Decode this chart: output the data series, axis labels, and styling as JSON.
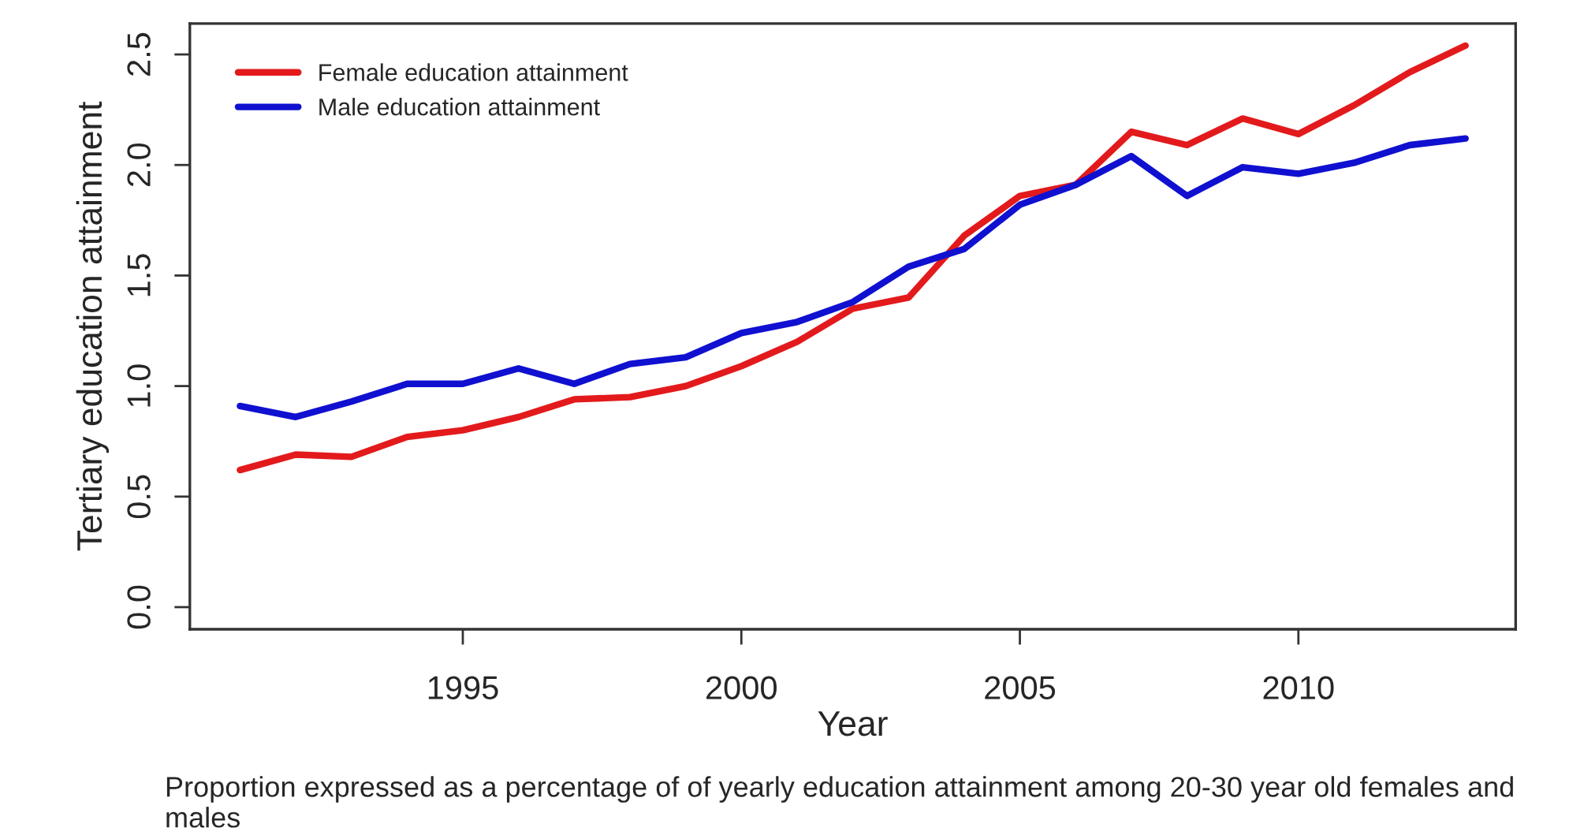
{
  "chart_data": {
    "type": "line",
    "xlabel": "Year",
    "ylabel": "Tertiary education attainment",
    "x": [
      1991,
      1992,
      1993,
      1994,
      1995,
      1996,
      1997,
      1998,
      1999,
      2000,
      2001,
      2002,
      2003,
      2004,
      2005,
      2006,
      2007,
      2008,
      2009,
      2010,
      2011,
      2012,
      2013
    ],
    "series": [
      {
        "name": "Female education attainment",
        "color": "#e31a1c",
        "values": [
          0.62,
          0.69,
          0.68,
          0.77,
          0.8,
          0.86,
          0.94,
          0.95,
          1.0,
          1.09,
          1.2,
          1.35,
          1.4,
          1.68,
          1.86,
          1.91,
          2.15,
          2.09,
          2.21,
          2.14,
          2.27,
          2.42,
          2.54
        ]
      },
      {
        "name": "Male education attainment",
        "color": "#1010d0",
        "values": [
          0.91,
          0.86,
          0.93,
          1.01,
          1.01,
          1.08,
          1.01,
          1.1,
          1.13,
          1.24,
          1.29,
          1.38,
          1.54,
          1.62,
          1.82,
          1.91,
          2.04,
          1.86,
          1.99,
          1.96,
          2.01,
          2.09,
          2.12
        ]
      }
    ],
    "xlim": [
      1990.1,
      2013.9
    ],
    "ylim": [
      -0.1,
      2.64
    ],
    "xticks": [
      1995,
      2000,
      2005,
      2010
    ],
    "yticks": [
      {
        "value": 0,
        "label": "0.0"
      },
      0.5,
      {
        "value": 1,
        "label": "1.0"
      },
      1.5,
      {
        "value": 2,
        "label": "2.0"
      },
      2.5
    ],
    "grid": false,
    "legend": "top left",
    "marker": "none",
    "line_style": "solid",
    "annotations": [
      "Proportion expressed as a percentage of of yearly education attainment among 20-30 year old females and males"
    ]
  }
}
